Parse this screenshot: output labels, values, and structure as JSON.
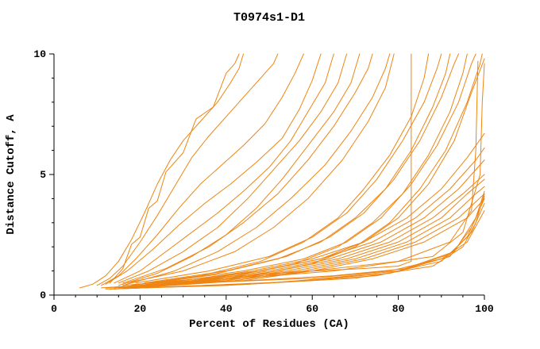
{
  "chart_data": {
    "type": "line",
    "title": "T0974s1-D1",
    "xlabel": "Percent of Residues (CA)",
    "ylabel": "Distance Cutoff, A",
    "xlim": [
      0,
      100
    ],
    "ylim": [
      0,
      10
    ],
    "x_ticks": [
      0,
      20,
      40,
      60,
      80,
      100
    ],
    "y_ticks": [
      0,
      5,
      10
    ],
    "x_minor_step": 5,
    "y_minor_step": 1,
    "grid": false,
    "legend": "none",
    "line_color": "#ee8512",
    "axis_color": "#000000",
    "series": [
      [
        [
          6,
          0.3
        ],
        [
          9,
          0.45
        ],
        [
          12,
          0.8
        ],
        [
          15,
          1.4
        ],
        [
          18,
          2.3
        ],
        [
          21,
          3.4
        ],
        [
          24,
          4.6
        ],
        [
          27,
          5.6
        ],
        [
          30,
          6.4
        ],
        [
          34,
          7.2
        ],
        [
          38,
          8.0
        ],
        [
          41,
          8.8
        ],
        [
          43,
          9.4
        ],
        [
          44,
          10
        ]
      ],
      [
        [
          10,
          0.4
        ],
        [
          13,
          0.7
        ],
        [
          16,
          1.2
        ],
        [
          20,
          2.2
        ],
        [
          24,
          3.3
        ],
        [
          28,
          4.5
        ],
        [
          32,
          5.7
        ],
        [
          36,
          6.6
        ],
        [
          40,
          7.4
        ],
        [
          44,
          8.2
        ],
        [
          48,
          9.0
        ],
        [
          51,
          9.6
        ],
        [
          52,
          10
        ]
      ],
      [
        [
          11,
          0.4
        ],
        [
          15,
          0.8
        ],
        [
          19,
          1.5
        ],
        [
          24,
          2.5
        ],
        [
          29,
          3.6
        ],
        [
          34,
          4.6
        ],
        [
          39,
          5.4
        ],
        [
          44,
          6.2
        ],
        [
          49,
          7.1
        ],
        [
          53,
          8.2
        ],
        [
          56,
          9.2
        ],
        [
          58,
          10
        ]
      ],
      [
        [
          12,
          0.45
        ],
        [
          17,
          1.0
        ],
        [
          23,
          1.9
        ],
        [
          29,
          2.9
        ],
        [
          35,
          3.8
        ],
        [
          41,
          4.6
        ],
        [
          47,
          5.5
        ],
        [
          53,
          6.5
        ],
        [
          57,
          7.7
        ],
        [
          60,
          8.9
        ],
        [
          62,
          10
        ]
      ],
      [
        [
          13,
          0.5
        ],
        [
          16,
          1.1
        ],
        [
          18,
          2.1
        ],
        [
          20,
          2.4
        ],
        [
          22,
          3.6
        ],
        [
          24,
          3.9
        ],
        [
          26,
          5.1
        ],
        [
          30,
          5.9
        ],
        [
          33,
          7.3
        ],
        [
          37,
          7.8
        ],
        [
          40,
          9.2
        ],
        [
          42,
          9.6
        ],
        [
          43,
          10
        ]
      ],
      [
        [
          14,
          0.5
        ],
        [
          20,
          1.0
        ],
        [
          26,
          1.8
        ],
        [
          32,
          2.6
        ],
        [
          38,
          3.4
        ],
        [
          44,
          4.3
        ],
        [
          50,
          5.3
        ],
        [
          55,
          6.4
        ],
        [
          59,
          7.6
        ],
        [
          63,
          8.8
        ],
        [
          65,
          10
        ]
      ],
      [
        [
          15,
          0.5
        ],
        [
          22,
          1.0
        ],
        [
          30,
          1.8
        ],
        [
          38,
          2.8
        ],
        [
          45,
          4.0
        ],
        [
          51,
          5.2
        ],
        [
          57,
          6.4
        ],
        [
          62,
          7.6
        ],
        [
          66,
          8.8
        ],
        [
          68,
          10
        ]
      ],
      [
        [
          15,
          0.4
        ],
        [
          24,
          0.9
        ],
        [
          32,
          1.6
        ],
        [
          40,
          2.5
        ],
        [
          47,
          3.6
        ],
        [
          53,
          4.8
        ],
        [
          59,
          6.2
        ],
        [
          65,
          7.6
        ],
        [
          69,
          8.8
        ],
        [
          71,
          10
        ]
      ],
      [
        [
          16,
          0.5
        ],
        [
          26,
          1.1
        ],
        [
          36,
          2.0
        ],
        [
          44,
          3.0
        ],
        [
          52,
          4.2
        ],
        [
          59,
          5.6
        ],
        [
          65,
          7.0
        ],
        [
          70,
          8.4
        ],
        [
          73,
          9.4
        ],
        [
          74,
          10
        ]
      ],
      [
        [
          16,
          0.4
        ],
        [
          28,
          1.0
        ],
        [
          38,
          1.8
        ],
        [
          47,
          2.8
        ],
        [
          55,
          4.0
        ],
        [
          63,
          5.4
        ],
        [
          69,
          6.8
        ],
        [
          74,
          8.2
        ],
        [
          77,
          9.4
        ],
        [
          78,
          10
        ]
      ],
      [
        [
          17,
          0.5
        ],
        [
          30,
          1.0
        ],
        [
          42,
          1.8
        ],
        [
          51,
          2.8
        ],
        [
          59,
          4.0
        ],
        [
          67,
          5.6
        ],
        [
          73,
          7.2
        ],
        [
          77,
          8.6
        ],
        [
          79,
          10
        ]
      ],
      [
        [
          16,
          0.4
        ],
        [
          35,
          0.7
        ],
        [
          55,
          0.95
        ],
        [
          72,
          1.1
        ],
        [
          80,
          1.2
        ],
        [
          83,
          1.4
        ],
        [
          83,
          10
        ]
      ],
      [
        [
          18,
          0.4
        ],
        [
          34,
          0.8
        ],
        [
          48,
          1.4
        ],
        [
          58,
          2.2
        ],
        [
          66,
          3.2
        ],
        [
          72,
          4.4
        ],
        [
          78,
          5.8
        ],
        [
          83,
          7.4
        ],
        [
          86,
          9.0
        ],
        [
          87,
          10
        ]
      ],
      [
        [
          19,
          0.5
        ],
        [
          36,
          1.0
        ],
        [
          50,
          1.6
        ],
        [
          60,
          2.4
        ],
        [
          68,
          3.4
        ],
        [
          75,
          4.8
        ],
        [
          81,
          6.4
        ],
        [
          86,
          8.0
        ],
        [
          89,
          9.4
        ],
        [
          90,
          10
        ]
      ],
      [
        [
          20,
          0.4
        ],
        [
          38,
          0.9
        ],
        [
          52,
          1.5
        ],
        [
          62,
          2.2
        ],
        [
          70,
          3.2
        ],
        [
          77,
          4.4
        ],
        [
          83,
          6.0
        ],
        [
          88,
          7.8
        ],
        [
          91,
          9.2
        ],
        [
          92,
          10
        ]
      ],
      [
        [
          21,
          0.5
        ],
        [
          40,
          1.0
        ],
        [
          54,
          1.6
        ],
        [
          64,
          2.4
        ],
        [
          72,
          3.4
        ],
        [
          79,
          4.8
        ],
        [
          85,
          6.4
        ],
        [
          90,
          8.2
        ],
        [
          93,
          9.6
        ],
        [
          94,
          10
        ]
      ],
      [
        [
          22,
          0.4
        ],
        [
          42,
          0.8
        ],
        [
          56,
          1.3
        ],
        [
          66,
          2.0
        ],
        [
          74,
          3.0
        ],
        [
          81,
          4.2
        ],
        [
          87,
          5.8
        ],
        [
          92,
          7.6
        ],
        [
          95,
          9.2
        ],
        [
          96,
          10
        ]
      ],
      [
        [
          23,
          0.5
        ],
        [
          44,
          1.0
        ],
        [
          58,
          1.5
        ],
        [
          68,
          2.2
        ],
        [
          76,
          3.2
        ],
        [
          83,
          4.6
        ],
        [
          89,
          6.2
        ],
        [
          94,
          8.0
        ],
        [
          97,
          9.6
        ],
        [
          98,
          10
        ]
      ],
      [
        [
          24,
          0.4
        ],
        [
          46,
          0.8
        ],
        [
          60,
          1.3
        ],
        [
          70,
          2.0
        ],
        [
          78,
          3.0
        ],
        [
          85,
          4.4
        ],
        [
          91,
          6.0
        ],
        [
          96,
          8.0
        ],
        [
          99,
          9.6
        ],
        [
          99.5,
          10
        ]
      ],
      [
        [
          25,
          0.5
        ],
        [
          48,
          1.0
        ],
        [
          62,
          1.5
        ],
        [
          72,
          2.2
        ],
        [
          80,
          3.2
        ],
        [
          87,
          4.6
        ],
        [
          93,
          6.4
        ],
        [
          97,
          8.4
        ],
        [
          100,
          9.8
        ]
      ],
      [
        [
          25,
          0.5
        ],
        [
          55,
          0.9
        ],
        [
          80,
          1.4
        ],
        [
          92,
          2.2
        ],
        [
          97,
          3.5
        ],
        [
          98,
          6.0
        ],
        [
          98.5,
          9.7
        ]
      ],
      [
        [
          30,
          0.5
        ],
        [
          65,
          1.0
        ],
        [
          88,
          1.6
        ],
        [
          95,
          2.6
        ],
        [
          99,
          5.0
        ],
        [
          99.5,
          8.0
        ],
        [
          100,
          9.6
        ]
      ],
      [
        [
          14,
          0.3
        ],
        [
          30,
          0.6
        ],
        [
          46,
          1.0
        ],
        [
          60,
          1.5
        ],
        [
          72,
          2.2
        ],
        [
          82,
          3.2
        ],
        [
          90,
          4.4
        ],
        [
          96,
          5.7
        ],
        [
          100,
          6.7
        ]
      ],
      [
        [
          15,
          0.3
        ],
        [
          32,
          0.6
        ],
        [
          48,
          1.0
        ],
        [
          62,
          1.5
        ],
        [
          74,
          2.2
        ],
        [
          84,
          3.2
        ],
        [
          92,
          4.4
        ],
        [
          98,
          5.6
        ],
        [
          100,
          6.1
        ]
      ],
      [
        [
          16,
          0.3
        ],
        [
          34,
          0.6
        ],
        [
          50,
          1.0
        ],
        [
          64,
          1.5
        ],
        [
          76,
          2.2
        ],
        [
          86,
          3.2
        ],
        [
          94,
          4.4
        ],
        [
          100,
          5.6
        ]
      ],
      [
        [
          16,
          0.3
        ],
        [
          36,
          0.6
        ],
        [
          52,
          1.0
        ],
        [
          66,
          1.5
        ],
        [
          78,
          2.2
        ],
        [
          88,
          3.2
        ],
        [
          95,
          4.2
        ],
        [
          100,
          5.0
        ]
      ],
      [
        [
          17,
          0.3
        ],
        [
          38,
          0.6
        ],
        [
          54,
          1.0
        ],
        [
          68,
          1.5
        ],
        [
          80,
          2.2
        ],
        [
          90,
          3.2
        ],
        [
          96,
          4.2
        ],
        [
          100,
          4.8
        ]
      ],
      [
        [
          18,
          0.3
        ],
        [
          40,
          0.6
        ],
        [
          56,
          1.0
        ],
        [
          70,
          1.5
        ],
        [
          82,
          2.2
        ],
        [
          92,
          3.2
        ],
        [
          98,
          4.2
        ],
        [
          100,
          4.5
        ]
      ],
      [
        [
          18,
          0.3
        ],
        [
          42,
          0.6
        ],
        [
          58,
          1.0
        ],
        [
          72,
          1.5
        ],
        [
          84,
          2.2
        ],
        [
          94,
          3.2
        ],
        [
          100,
          4.2
        ]
      ],
      [
        [
          19,
          0.3
        ],
        [
          44,
          0.6
        ],
        [
          60,
          1.0
        ],
        [
          74,
          1.5
        ],
        [
          86,
          2.2
        ],
        [
          96,
          3.2
        ],
        [
          100,
          4.0
        ]
      ],
      [
        [
          12,
          0.25
        ],
        [
          40,
          0.4
        ],
        [
          70,
          0.7
        ],
        [
          88,
          1.2
        ],
        [
          95,
          2.0
        ],
        [
          98,
          3.0
        ],
        [
          100,
          4.2
        ]
      ],
      [
        [
          13,
          0.25
        ],
        [
          45,
          0.45
        ],
        [
          75,
          0.8
        ],
        [
          90,
          1.4
        ],
        [
          96,
          2.4
        ],
        [
          99,
          3.6
        ],
        [
          100,
          4.1
        ]
      ],
      [
        [
          13,
          0.25
        ],
        [
          50,
          0.5
        ],
        [
          78,
          0.9
        ],
        [
          92,
          1.6
        ],
        [
          97,
          2.8
        ],
        [
          100,
          4.0
        ]
      ],
      [
        [
          14,
          0.25
        ],
        [
          55,
          0.55
        ],
        [
          80,
          1.0
        ],
        [
          93,
          1.8
        ],
        [
          98,
          3.2
        ],
        [
          100,
          4.3
        ]
      ],
      [
        [
          12,
          0.3
        ],
        [
          25,
          0.45
        ],
        [
          45,
          0.6
        ],
        [
          65,
          0.8
        ],
        [
          82,
          1.1
        ],
        [
          92,
          1.7
        ],
        [
          97,
          2.6
        ],
        [
          100,
          3.8
        ]
      ],
      [
        [
          11,
          0.3
        ],
        [
          20,
          0.4
        ],
        [
          40,
          0.55
        ],
        [
          60,
          0.7
        ],
        [
          78,
          1.0
        ],
        [
          90,
          1.5
        ],
        [
          96,
          2.2
        ],
        [
          100,
          3.5
        ]
      ]
    ]
  }
}
